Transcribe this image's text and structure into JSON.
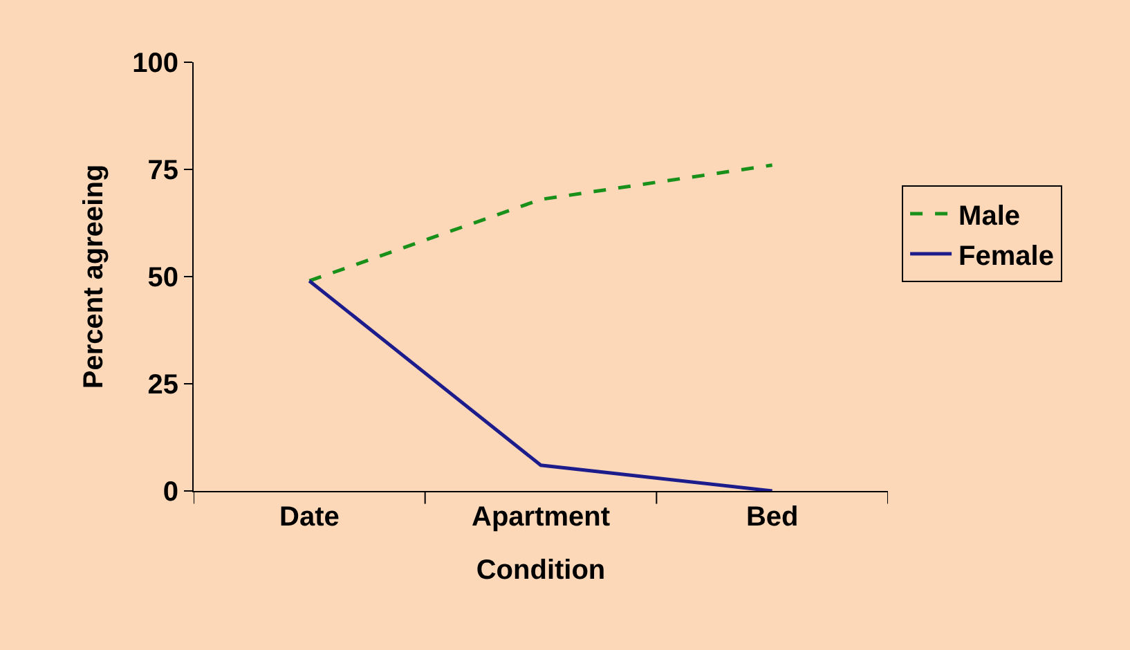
{
  "chart_data": {
    "type": "line",
    "xlabel": "Condition",
    "ylabel": "Percent agreeing",
    "categories": [
      "Date",
      "Apartment",
      "Bed"
    ],
    "series": [
      {
        "name": "Male",
        "color": "#199019",
        "values": [
          49,
          68,
          76
        ],
        "line_style": "dashed"
      },
      {
        "name": "Female",
        "color": "#1c1c8c",
        "values": [
          49,
          6,
          0
        ],
        "line_style": "solid"
      }
    ],
    "ylim": [
      0,
      100
    ],
    "yticks": [
      0,
      25,
      50,
      75,
      100
    ],
    "grid": false,
    "legend": "right",
    "marker": "none"
  }
}
